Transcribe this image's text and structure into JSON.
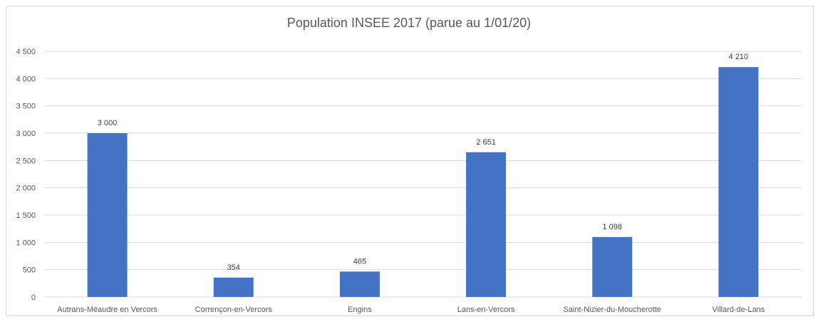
{
  "chart_data": {
    "type": "bar",
    "title": "Population INSEE 2017 (parue au 1/01/20)",
    "xlabel": "",
    "ylabel": "",
    "categories": [
      "Autrans-Méaudre en Vercors",
      "Corrençon-en-Vercors",
      "Engins",
      "Lans-en-Vercors",
      "Saint-Nizier-du-Moucherotte",
      "Villard-de-Lans"
    ],
    "values": [
      3000,
      354,
      465,
      2651,
      1098,
      4210
    ],
    "value_labels": [
      "3 000",
      "354",
      "465",
      "2 651",
      "1 098",
      "4 210"
    ],
    "ylim": [
      0,
      4500
    ],
    "y_ticks": [
      0,
      500,
      1000,
      1500,
      2000,
      2500,
      3000,
      3500,
      4000,
      4500
    ],
    "y_tick_labels": [
      "0",
      "500",
      "1 000",
      "1 500",
      "2 000",
      "2 500",
      "3 000",
      "3 500",
      "4 000",
      "4 500"
    ],
    "grid": true,
    "legend": "none",
    "bar_color": "#4472C4",
    "grid_color": "#d9d9d9"
  }
}
